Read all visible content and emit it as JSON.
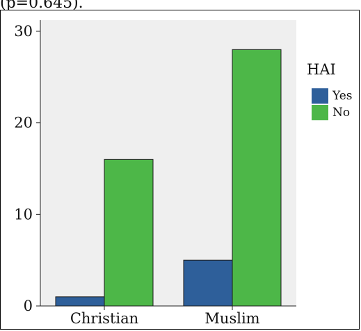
{
  "page": {
    "top_fragment": "(p=0.645)."
  },
  "colors": {
    "plot_background": "#efefef",
    "yes": "#2e5f9a",
    "no": "#4db748"
  },
  "chart_data": {
    "type": "bar",
    "title": "",
    "xlabel": "",
    "ylabel": "",
    "categories": [
      "Christian",
      "Muslim"
    ],
    "series": [
      {
        "name": "Yes",
        "values": [
          1,
          5
        ]
      },
      {
        "name": "No",
        "values": [
          16,
          28
        ]
      }
    ],
    "ylim": [
      0,
      30
    ],
    "yticks": [
      0,
      10,
      20,
      30
    ],
    "legend": {
      "title": "HAI",
      "placement": "right"
    },
    "grid": false
  }
}
